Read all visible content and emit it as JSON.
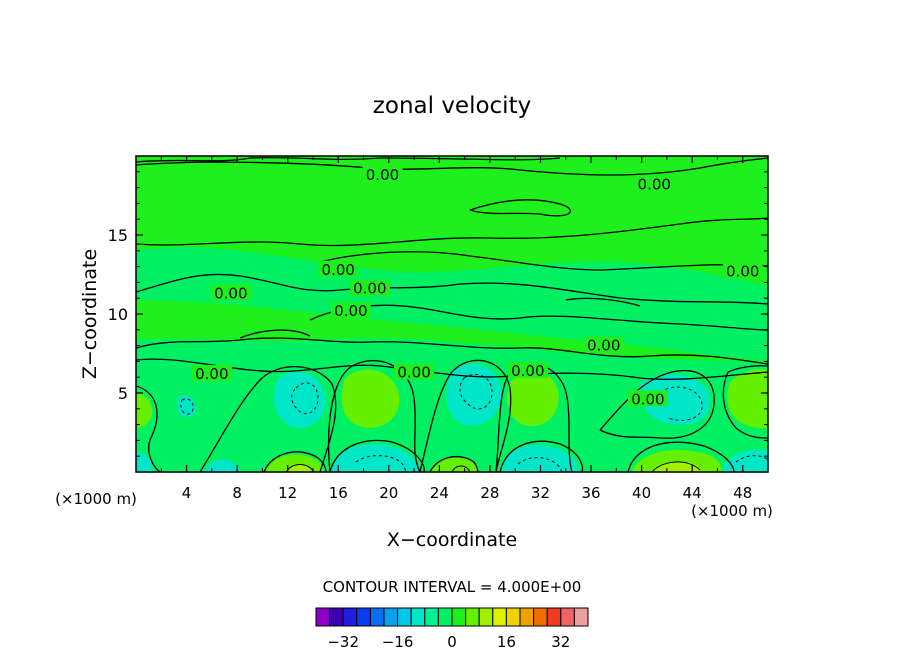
{
  "chart_data": {
    "type": "heatmap",
    "title": "zonal velocity",
    "xlabel": "X−coordinate",
    "ylabel": "Z−coordinate",
    "x_units": "(×1000 m)",
    "z_units": "(×1000 m)",
    "xlim": [
      0,
      50
    ],
    "ylim": [
      0,
      20
    ],
    "x_ticks": [
      4,
      8,
      12,
      16,
      20,
      24,
      28,
      32,
      36,
      40,
      44,
      48
    ],
    "y_ticks": [
      5,
      10,
      15
    ],
    "contour_interval_text": "CONTOUR INTERVAL = 4.000E+00",
    "contour_label": "0.00",
    "contour_labels": [
      {
        "x": 19.5,
        "z": 18.8,
        "text": "0.00"
      },
      {
        "x": 41.0,
        "z": 18.2,
        "text": "0.00"
      },
      {
        "x": 48.0,
        "z": 12.7,
        "text": "0.00"
      },
      {
        "x": 16.0,
        "z": 12.8,
        "text": "0.00"
      },
      {
        "x": 7.5,
        "z": 11.3,
        "text": "0.00"
      },
      {
        "x": 18.5,
        "z": 11.6,
        "text": "0.00"
      },
      {
        "x": 17.0,
        "z": 10.2,
        "text": "0.00"
      },
      {
        "x": 37.0,
        "z": 8.0,
        "text": "0.00"
      },
      {
        "x": 6.0,
        "z": 6.2,
        "text": "0.00"
      },
      {
        "x": 22.0,
        "z": 6.3,
        "text": "0.00"
      },
      {
        "x": 31.0,
        "z": 6.4,
        "text": "0.00"
      },
      {
        "x": 40.5,
        "z": 4.6,
        "text": "0.00"
      }
    ],
    "colorbar": {
      "levels": [
        -36,
        -32,
        -28,
        -24,
        -20,
        -16,
        -12,
        -8,
        -4,
        0,
        4,
        8,
        12,
        16,
        20,
        24,
        28,
        32,
        36
      ],
      "colors": [
        "#8a00c8",
        "#3c00b4",
        "#1e1edc",
        "#0a3cf0",
        "#0a6ef0",
        "#0aa0f0",
        "#00c8e6",
        "#00e6c8",
        "#00f096",
        "#00f064",
        "#1ef01e",
        "#64f000",
        "#a0f000",
        "#dcf000",
        "#f0d200",
        "#f0a000",
        "#f06e00",
        "#f03c1e",
        "#f06464",
        "#f0a0a0"
      ],
      "tick_labels": [
        "−32",
        "−16",
        "0",
        "16",
        "32"
      ],
      "tick_values": [
        -32,
        -16,
        0,
        16,
        32
      ]
    },
    "background_color": "#1ef01e"
  }
}
